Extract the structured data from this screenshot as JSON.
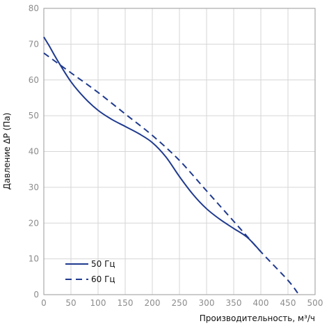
{
  "chart_data": {
    "type": "line",
    "xlabel": "Производительность, м³/ч",
    "ylabel": "Давление ΔP (Па)",
    "xlim": [
      0,
      500
    ],
    "ylim": [
      0,
      80
    ],
    "xticks": [
      0,
      50,
      100,
      150,
      200,
      250,
      300,
      350,
      400,
      450,
      500
    ],
    "yticks": [
      0,
      10,
      20,
      30,
      40,
      50,
      60,
      70,
      80
    ],
    "grid": true,
    "legend_position": "bottom-left",
    "series": [
      {
        "name": "50 Гц",
        "style": "solid",
        "color": "#1f3a8f",
        "points": [
          [
            0,
            72
          ],
          [
            10,
            69.5
          ],
          [
            25,
            65.5
          ],
          [
            50,
            59.5
          ],
          [
            75,
            55
          ],
          [
            100,
            51.5
          ],
          [
            125,
            49
          ],
          [
            150,
            47
          ],
          [
            175,
            45
          ],
          [
            200,
            42.5
          ],
          [
            225,
            38.5
          ],
          [
            250,
            33
          ],
          [
            275,
            28
          ],
          [
            300,
            24
          ],
          [
            325,
            21
          ],
          [
            350,
            18.5
          ],
          [
            375,
            16
          ],
          [
            400,
            12
          ]
        ]
      },
      {
        "name": "60 Гц",
        "style": "dashed",
        "color": "#1f3a8f",
        "points": [
          [
            0,
            67.5
          ],
          [
            50,
            62
          ],
          [
            100,
            56.5
          ],
          [
            150,
            50.5
          ],
          [
            200,
            44.5
          ],
          [
            250,
            37.5
          ],
          [
            300,
            29
          ],
          [
            350,
            20.5
          ],
          [
            400,
            12
          ],
          [
            450,
            4
          ],
          [
            470,
            0
          ]
        ]
      }
    ]
  }
}
